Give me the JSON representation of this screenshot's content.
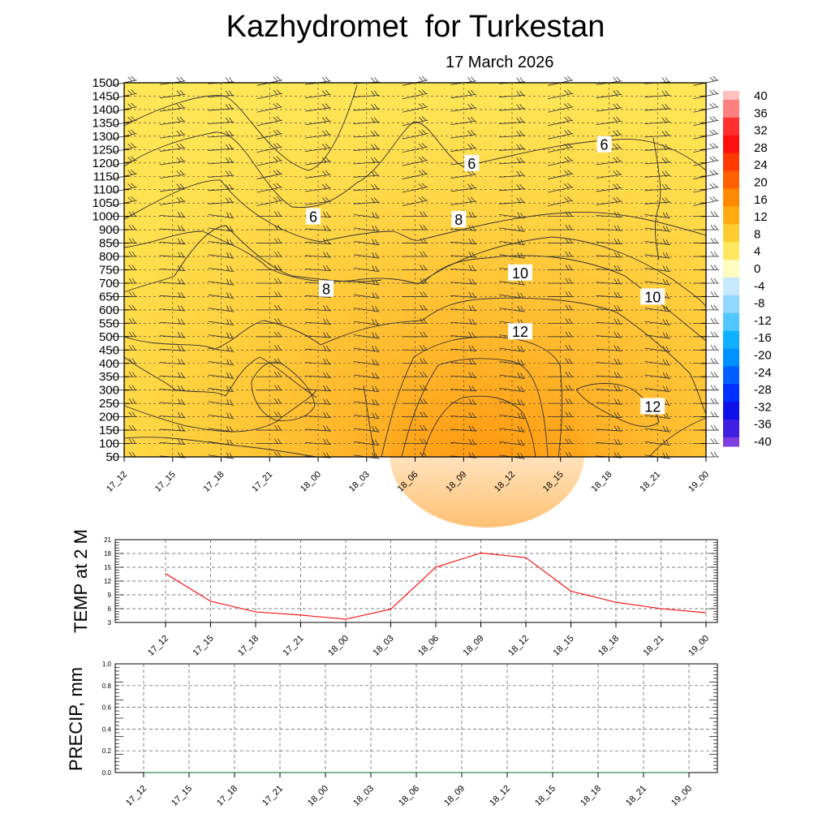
{
  "title": "Kazhydromet  for Turkestan",
  "subtitle": "17 March 2026",
  "colors": {
    "line": "#ff0000",
    "precip": "#2e8b57",
    "grid": "#555555"
  },
  "chart_data": [
    {
      "type": "heatmap",
      "name": "temperature cross-section",
      "x_categories": [
        "17_12",
        "17_15",
        "17_18",
        "17_21",
        "18_00",
        "18_03",
        "18_06",
        "18_09",
        "18_12",
        "18_15",
        "18_18",
        "18_21",
        "19_00"
      ],
      "y_levels": [
        50,
        100,
        150,
        200,
        250,
        300,
        350,
        400,
        450,
        500,
        550,
        600,
        650,
        700,
        750,
        800,
        850,
        900,
        1000,
        1050,
        1100,
        1150,
        1200,
        1250,
        1300,
        1350,
        1400,
        1450,
        1500
      ],
      "colorbar_labels": [
        "40",
        "36",
        "32",
        "28",
        "24",
        "20",
        "16",
        "12",
        "8",
        "4",
        "0",
        "-4",
        "-8",
        "-12",
        "-16",
        "-20",
        "-24",
        "-28",
        "-32",
        "-36",
        "-40"
      ],
      "contour_labels": [
        {
          "text": "6",
          "x": "18_00",
          "level": 1000
        },
        {
          "text": "6",
          "x": "18_09",
          "level": 1200
        },
        {
          "text": "6",
          "x": "18_18",
          "level": 1270
        },
        {
          "text": "8",
          "x": "18_00",
          "level": 680
        },
        {
          "text": "8",
          "x": "18_09",
          "level": 980
        },
        {
          "text": "10",
          "x": "18_12",
          "level": 740
        },
        {
          "text": "10",
          "x": "18_21",
          "level": 650
        },
        {
          "text": "12",
          "x": "18_12",
          "level": 520
        },
        {
          "text": "12",
          "x": "18_21",
          "level": 240
        }
      ]
    },
    {
      "type": "line",
      "ylabel": "TEMP at 2 M",
      "x": [
        "17_12",
        "17_15",
        "17_18",
        "17_21",
        "18_00",
        "18_03",
        "18_06",
        "18_09",
        "18_12",
        "18_15",
        "18_18",
        "18_21",
        "19_00"
      ],
      "values": [
        13.6,
        7.6,
        5.3,
        4.6,
        3.7,
        5.9,
        15.0,
        18.1,
        17.1,
        9.8,
        7.4,
        6.0,
        5.1
      ],
      "y_ticks": [
        "3",
        "6",
        "9",
        "12",
        "15",
        "18",
        "21"
      ],
      "ylim": [
        3,
        21
      ]
    },
    {
      "type": "line",
      "ylabel": "PRECIP, mm",
      "x": [
        "17_12",
        "17_15",
        "17_18",
        "17_21",
        "18_00",
        "18_03",
        "18_06",
        "18_09",
        "18_12",
        "18_15",
        "18_18",
        "18_21",
        "19_00"
      ],
      "values": [
        0,
        0,
        0,
        0,
        0,
        0,
        0,
        0,
        0,
        0,
        0,
        0,
        0
      ],
      "y_ticks": [
        "0.0",
        "0.2",
        "0.4",
        "0.6",
        "0.8",
        "1.0"
      ],
      "ylim": [
        0,
        1
      ]
    }
  ]
}
